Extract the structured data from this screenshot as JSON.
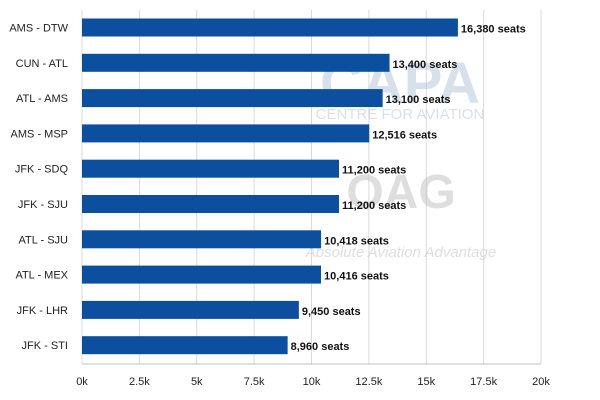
{
  "chart_data": {
    "type": "bar",
    "orientation": "horizontal",
    "categories": [
      "AMS - DTW",
      "CUN - ATL",
      "ATL - AMS",
      "AMS - MSP",
      "JFK - SDQ",
      "JFK - SJU",
      "ATL - SJU",
      "ATL - MEX",
      "JFK - LHR",
      "JFK - STI"
    ],
    "values": [
      16380,
      13400,
      13100,
      12516,
      11200,
      11200,
      10418,
      10416,
      9450,
      8960
    ],
    "data_labels": [
      "16,380 seats",
      "13,400 seats",
      "13,100 seats",
      "12,516 seats",
      "11,200 seats",
      "11,200 seats",
      "10,418 seats",
      "10,416 seats",
      "9,450 seats",
      "8,960 seats"
    ],
    "x_ticks": [
      0,
      2500,
      5000,
      7500,
      10000,
      12500,
      15000,
      17500,
      20000
    ],
    "x_tick_labels": [
      "0k",
      "2.5k",
      "5k",
      "7.5k",
      "10k",
      "12.5k",
      "15k",
      "17.5k",
      "20k"
    ],
    "xlim": [
      0,
      20000
    ],
    "grid": "vertical",
    "bar_color": "#0b4f9e",
    "title": "",
    "xlabel": "",
    "ylabel": ""
  },
  "watermarks": {
    "capa_logo": "CAPA",
    "capa_tagline": "CENTRE FOR AVIATION",
    "oag_logo": "OAG",
    "oag_tagline": "Absolute Aviation Advantage",
    "capa_color": "#b7c9dc",
    "oag_color": "#c9c9c9"
  }
}
